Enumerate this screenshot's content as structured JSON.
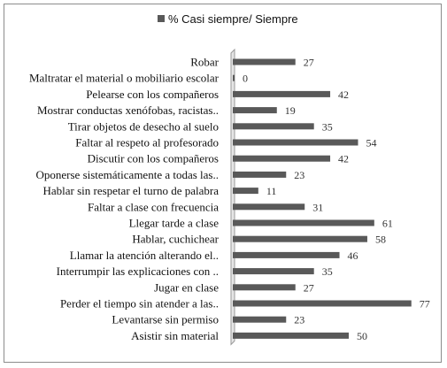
{
  "chart_data": {
    "type": "bar",
    "orientation": "horizontal",
    "legend_position": "top",
    "grid": false,
    "xlim": [
      0,
      80
    ],
    "series": [
      {
        "name": "% Casi siempre/ Siempre",
        "color": "#595959"
      }
    ],
    "categories": [
      "Robar",
      "Maltratar el material o mobiliario escolar",
      "Pelearse con los compañeros",
      "Mostrar conductas xenófobas, racistas..",
      "Tirar objetos de desecho al suelo",
      "Faltar al respeto al profesorado",
      "Discutir con los compañeros",
      "Oponerse sistemáticamente a todas las..",
      "Hablar sin respetar el turno de palabra",
      "Faltar a clase con frecuencia",
      "Llegar tarde a clase",
      "Hablar, cuchichear",
      "Llamar la atención alterando el..",
      "Interrumpir las explicaciones con ..",
      "Jugar en clase",
      "Perder el tiempo sin atender a las..",
      "Levantarse sin permiso",
      "Asistir sin material"
    ],
    "values": [
      27,
      0,
      42,
      19,
      35,
      54,
      42,
      23,
      11,
      31,
      61,
      58,
      46,
      35,
      27,
      77,
      23,
      50
    ]
  }
}
